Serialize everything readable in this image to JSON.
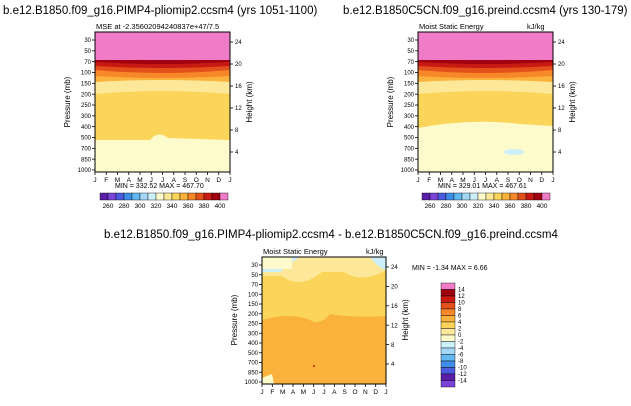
{
  "chart_data": [
    {
      "type": "heatmap",
      "title": "b.e12.B1850.f09_g16.PIMP4-pliomip2.ccsm4 (yrs 1051-1100)",
      "subtitle_left": "MSE at -2.35602094240837e+47/7.5",
      "ylabel_left": "Pressure (mb)",
      "ylabel_right": "Height (km)",
      "x_categories": [
        "J",
        "F",
        "M",
        "A",
        "M",
        "J",
        "J",
        "A",
        "S",
        "O",
        "N",
        "D",
        "J"
      ],
      "y_left_ticks": [
        "30",
        "50",
        "70",
        "100",
        "150",
        "200",
        "250",
        "300",
        "400",
        "500",
        "700",
        "850",
        "1000"
      ],
      "y_right_ticks": [
        "24",
        "20",
        "16",
        "12",
        "8",
        "4"
      ],
      "min_max_text": "MIN = 332.52   MAX = 467.70",
      "level_range": [
        260,
        400
      ],
      "colorbar_labels": [
        "260",
        "280",
        "300",
        "320",
        "340",
        "360",
        "380",
        "400"
      ]
    },
    {
      "type": "heatmap",
      "title": "b.e12.B1850C5CN.f09_g16.preind.ccsm4 (yrs 130-179)",
      "subtitle_left": "Moist Static Energy",
      "subtitle_right": "kJ/kg",
      "ylabel_left": "Pressure (mb)",
      "ylabel_right": "Height (km)",
      "x_categories": [
        "J",
        "F",
        "M",
        "A",
        "M",
        "J",
        "J",
        "A",
        "S",
        "O",
        "N",
        "D",
        "J"
      ],
      "y_left_ticks": [
        "30",
        "50",
        "70",
        "100",
        "150",
        "200",
        "250",
        "300",
        "400",
        "500",
        "700",
        "850",
        "1000"
      ],
      "y_right_ticks": [
        "24",
        "20",
        "16",
        "12",
        "8",
        "4"
      ],
      "min_max_text": "MIN = 329.01   MAX = 467.61",
      "level_range": [
        260,
        400
      ],
      "colorbar_labels": [
        "260",
        "280",
        "300",
        "320",
        "340",
        "360",
        "380",
        "400"
      ]
    },
    {
      "type": "heatmap",
      "title": "b.e12.B1850.f09_g16.PIMP4-pliomip2.ccsm4 - b.e12.B1850C5CN.f09_g16.preind.ccsm4",
      "subtitle_left": "Moist Static Energy",
      "subtitle_right": "kJ/kg",
      "ylabel_left": "Pressure (mb)",
      "ylabel_right": "Height (km)",
      "x_categories": [
        "J",
        "F",
        "M",
        "A",
        "M",
        "J",
        "J",
        "A",
        "S",
        "O",
        "N",
        "D",
        "J"
      ],
      "y_left_ticks": [
        "30",
        "50",
        "70",
        "100",
        "150",
        "200",
        "250",
        "300",
        "400",
        "500",
        "700",
        "850",
        "1000"
      ],
      "y_right_ticks": [
        "24",
        "20",
        "16",
        "12",
        "8",
        "4"
      ],
      "min_max_text": "MIN = -1.34   MAX =  6.66",
      "level_range": [
        -14,
        14
      ],
      "colorbar_labels": [
        "14",
        "12",
        "10",
        "8",
        "6",
        "4",
        "2",
        "0",
        "-2",
        "-4",
        "-6",
        "-8",
        "-10",
        "-12",
        "-14"
      ]
    }
  ],
  "colors": {
    "abs_scale": [
      "#5a1ea8",
      "#7a44d8",
      "#4a5be0",
      "#3e8ee8",
      "#62b8f0",
      "#a3d8f5",
      "#cdeffa",
      "#fdfbcc",
      "#fde89a",
      "#fbd55a",
      "#fab23c",
      "#f7882a",
      "#e4501c",
      "#c81a12",
      "#a00010",
      "#f07cc8"
    ],
    "diff_scale": [
      "#f07cc8",
      "#a00010",
      "#c81a12",
      "#e4501c",
      "#f7882a",
      "#fab23c",
      "#fbd55a",
      "#fde89a",
      "#fdfbcc",
      "#cdeffa",
      "#a3d8f5",
      "#62b8f0",
      "#3e8ee8",
      "#4a5be0",
      "#5a1ea8",
      "#7a44d8"
    ]
  }
}
